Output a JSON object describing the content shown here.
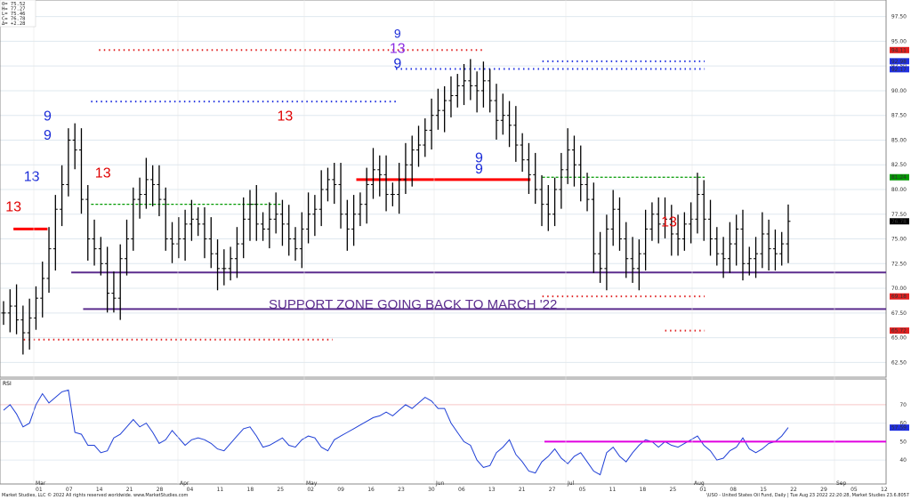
{
  "ohlc_readout": [
    "O= 75.52",
    "H= 77.27",
    "L= 75.46",
    "C= 76.78",
    "Δ= +2.28"
  ],
  "annotation": "SUPPORT ZONE GOING BACK TO MARCH '22",
  "rsi_label": "RSI",
  "footer_left": "Market Studies, LLC © 2022 All rights reserved worldwide. www.MarketStudies.com",
  "footer_right": "\\USO - United States Oil Fund, Daily | Tue Aug 23 2022 22:20:28, Market Studies 23.6.8057",
  "colors": {
    "price_bar": "#000000",
    "rsi_line": "#1f3fd6",
    "support": "#5b2d8e",
    "level_red": "#ff0000",
    "level_green": "#009900",
    "magenta": "#e000e0",
    "setup_blue": "#1a2bd8",
    "setup_red": "#e00000",
    "setup_purple": "#8a2be2",
    "dots_red": "#e02020",
    "dots_blue": "#2030e0",
    "dots_orange": "#f08020"
  },
  "price_axis_labels": [
    "97.50",
    "95.00",
    "92.50",
    "90.00",
    "87.50",
    "85.00",
    "82.50",
    "80.00",
    "77.50",
    "75.00",
    "72.50",
    "70.00",
    "67.50",
    "65.00",
    "62.50"
  ],
  "price_axis_highlights": [
    {
      "label": "94.11",
      "value": 94.11,
      "color": "#e02020"
    },
    {
      "label": "92.98",
      "value": 92.98,
      "color": "#2030e0"
    },
    {
      "label": "92.17",
      "value": 92.17,
      "color": "#2030e0"
    },
    {
      "label": "81.24",
      "value": 81.24,
      "color": "#009900"
    },
    {
      "label": "76.78",
      "value": 76.78,
      "color": "#000000"
    },
    {
      "label": "69.18",
      "value": 69.18,
      "color": "#e02020"
    },
    {
      "label": "65.72",
      "value": 65.72,
      "color": "#e02020"
    }
  ],
  "rsi_axis_labels": [
    "70",
    "60",
    "50",
    "40"
  ],
  "rsi_axis_highlights": [
    {
      "label": "57.59",
      "value": 57.59,
      "color": "#2030e0"
    }
  ],
  "month_labels": [
    "Mar",
    "Apr",
    "May",
    "Jun",
    "Jul",
    "Aug",
    "Sep"
  ],
  "date_labels": [
    "01",
    "07",
    "14",
    "21",
    "28",
    "04",
    "11",
    "18",
    "25",
    "02",
    "09",
    "16",
    "23",
    "30",
    "06",
    "13",
    "21",
    "27",
    "05",
    "11",
    "18",
    "25",
    "01",
    "08",
    "15",
    "22",
    "29",
    "05",
    "12"
  ],
  "chart_data": {
    "type": "ohlc",
    "price_ylim": [
      61,
      99
    ],
    "rsi_ylim": [
      27,
      83
    ],
    "close": [
      67.5,
      68.2,
      66.8,
      65.5,
      67.0,
      69.0,
      71.0,
      74.0,
      78.0,
      80.5,
      85.0,
      84.0,
      79.0,
      75.0,
      74.0,
      72.5,
      69.5,
      69.0,
      73.0,
      75.0,
      79.0,
      79.5,
      81.0,
      80.5,
      79.0,
      75.0,
      74.5,
      75.0,
      76.5,
      77.0,
      76.5,
      75.0,
      73.5,
      72.0,
      72.0,
      73.0,
      74.5,
      77.0,
      78.5,
      76.5,
      76.0,
      77.0,
      77.5,
      76.5,
      75.0,
      74.0,
      76.0,
      77.5,
      78.0,
      80.0,
      81.0,
      80.5,
      77.5,
      76.0,
      77.5,
      78.5,
      80.5,
      82.0,
      81.5,
      79.5,
      79.5,
      81.0,
      82.5,
      84.0,
      84.5,
      86.0,
      87.5,
      88.0,
      89.0,
      89.5,
      90.5,
      91.0,
      90.5,
      90.0,
      91.0,
      89.0,
      87.0,
      87.5,
      86.5,
      84.5,
      83.0,
      81.5,
      80.0,
      78.5,
      77.5,
      80.0,
      82.0,
      84.0,
      82.5,
      80.5,
      79.0,
      73.5,
      72.0,
      76.0,
      78.0,
      75.0,
      73.0,
      72.0,
      73.5,
      76.0,
      77.5,
      76.5,
      77.0,
      75.5,
      75.0,
      76.5,
      77.0,
      79.5,
      77.0,
      75.0,
      73.5,
      73.0,
      74.5,
      76.0,
      72.5,
      73.0,
      73.5,
      75.5,
      74.0,
      73.5,
      74.5,
      76.78
    ],
    "rsi": [
      67,
      70,
      65,
      58,
      60,
      70,
      76,
      71,
      74,
      77,
      78,
      55,
      54,
      48,
      48,
      44,
      45,
      52,
      54,
      58,
      62,
      58,
      60,
      55,
      49,
      51,
      56,
      52,
      48,
      51,
      52,
      51,
      49,
      46,
      45,
      49,
      53,
      57,
      58,
      53,
      47,
      48,
      50,
      52,
      48,
      47,
      51,
      53,
      52,
      47,
      45,
      51,
      53,
      55,
      57,
      59,
      61,
      63,
      64,
      66,
      64,
      67,
      70,
      68,
      71,
      74,
      72,
      68,
      68,
      60,
      55,
      50,
      48,
      40,
      36,
      37,
      44,
      47,
      51,
      43,
      39,
      34,
      33,
      39,
      42,
      46,
      41,
      38,
      42,
      44,
      39,
      34,
      32,
      44,
      47,
      42,
      39,
      44,
      48,
      51,
      50,
      47,
      50,
      48,
      47,
      49,
      51,
      53,
      48,
      45,
      40,
      41,
      45,
      47,
      52,
      46,
      44,
      46,
      49,
      50,
      53,
      57.59
    ],
    "levels": [
      {
        "kind": "support",
        "value": 71.6,
        "x_start": 0.09
      },
      {
        "kind": "support",
        "value": 67.9,
        "x_start": 0.105
      },
      {
        "kind": "red",
        "value": 81.0,
        "x_from": 0.45,
        "x_to": 0.67
      },
      {
        "kind": "red",
        "value": 76.0,
        "x_from": 0.017,
        "x_to": 0.06
      },
      {
        "kind": "green",
        "value": 81.24,
        "x_from": 0.685,
        "x_to": 0.89
      },
      {
        "kind": "green",
        "value": 78.5,
        "x_from": 0.115,
        "x_to": 0.355
      },
      {
        "kind": "blue_dots",
        "value": 88.9,
        "x_from": 0.115,
        "x_to": 0.5
      },
      {
        "kind": "blue_dots",
        "value": 92.2,
        "x_from": 0.5,
        "x_to": 0.89
      },
      {
        "kind": "blue_dots",
        "value": 92.98,
        "x_from": 0.685,
        "x_to": 0.89
      },
      {
        "kind": "red_dots",
        "value": 94.11,
        "x_from": 0.125,
        "x_to": 0.61
      },
      {
        "kind": "red_dots",
        "value": 64.8,
        "x_from": 0.03,
        "x_to": 0.42
      },
      {
        "kind": "red_dots",
        "value": 69.18,
        "x_from": 0.685,
        "x_to": 0.89
      },
      {
        "kind": "red_dots",
        "value": 65.72,
        "x_from": 0.84,
        "x_to": 0.89
      }
    ],
    "rsi_level": 50,
    "setup_counts": [
      {
        "text": "13",
        "pos": [
          0.017,
          0.56
        ],
        "color": "red",
        "size": 16
      },
      {
        "text": "13",
        "pos": [
          0.04,
          0.48
        ],
        "color": "blue",
        "size": 16
      },
      {
        "text": "9",
        "pos": [
          0.06,
          0.37
        ],
        "color": "blue",
        "size": 16
      },
      {
        "text": "9",
        "pos": [
          0.06,
          0.32
        ],
        "color": "blue",
        "size": 16
      },
      {
        "text": "13",
        "pos": [
          0.13,
          0.47
        ],
        "color": "red",
        "size": 16
      },
      {
        "text": "13",
        "pos": [
          0.36,
          0.32
        ],
        "color": "red",
        "size": 16
      },
      {
        "text": "13",
        "pos": [
          0.502,
          0.14
        ],
        "color": "purple",
        "size": 16
      },
      {
        "text": "9",
        "pos": [
          0.502,
          0.18
        ],
        "color": "blue",
        "size": 16
      },
      {
        "text": "9",
        "pos": [
          0.502,
          0.1
        ],
        "color": "blue",
        "size": 14
      },
      {
        "text": "9",
        "pos": [
          0.605,
          0.46
        ],
        "color": "blue",
        "size": 16
      },
      {
        "text": "9",
        "pos": [
          0.605,
          0.43
        ],
        "color": "blue",
        "size": 16
      },
      {
        "text": "13",
        "pos": [
          0.845,
          0.6
        ],
        "color": "red",
        "size": 16
      }
    ]
  }
}
